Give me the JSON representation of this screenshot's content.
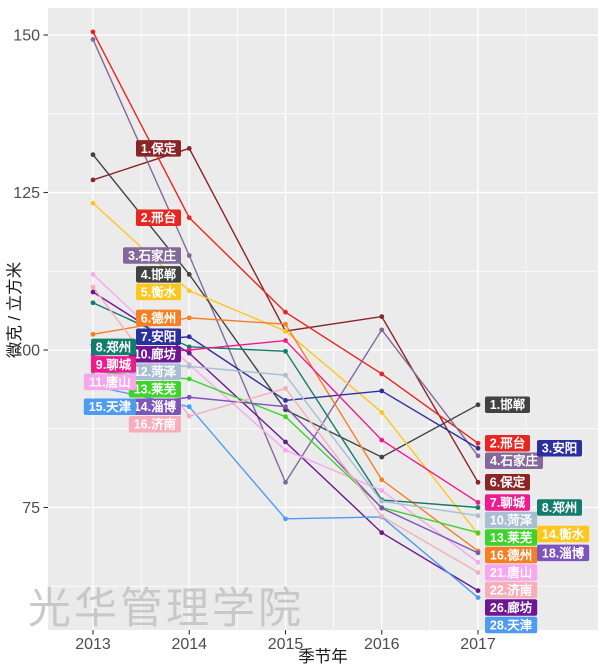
{
  "chart_data": {
    "type": "line",
    "title": "",
    "xlabel": "季节年",
    "ylabel": "微克 / 立方米",
    "watermark": "光华管理学院",
    "x_categories": [
      "2013",
      "2014",
      "2015",
      "2016",
      "2017"
    ],
    "y_ticks": [
      150,
      125,
      100,
      75
    ],
    "ylim": [
      55,
      155
    ],
    "grid": true,
    "panel_bg": "#EBEBEB",
    "grid_color": "#FFFFFF",
    "tick_color": "#333333",
    "tick_label_color": "#4D4D4D",
    "legend_position": "none",
    "label_style": "colored boxes with white bold text at 2014 (left, rank 1-16) and 2017 (right, national rank) positions",
    "series": [
      {
        "id": "baoding",
        "name": "保定",
        "left_label": "1.保定",
        "right_label": "6.保定",
        "left_col": "near",
        "right_col": "near",
        "color": "#8B2426",
        "values": [
          127,
          132,
          103,
          105.3,
          79
        ]
      },
      {
        "id": "xingtai",
        "name": "邢台",
        "left_label": "2.邢台",
        "right_label": "2.邢台",
        "left_col": "near",
        "right_col": "near",
        "color": "#E92520",
        "values": [
          150.5,
          121,
          106,
          96.2,
          85.2
        ]
      },
      {
        "id": "shijiazhuang",
        "name": "石家庄",
        "left_label": "3.石家庄",
        "right_label": "4.石家庄",
        "left_col": "near",
        "right_col": "near",
        "color": "#85689B",
        "values": [
          149.3,
          115,
          79,
          103.2,
          83.2
        ]
      },
      {
        "id": "handan",
        "name": "邯郸",
        "left_label": "4.邯郸",
        "right_label": "1.邯郸",
        "left_col": "near",
        "right_col": "near",
        "color": "#414141",
        "values": [
          131,
          112,
          90.5,
          83,
          91.3
        ]
      },
      {
        "id": "hengshui",
        "name": "衡水",
        "left_label": "5.衡水",
        "right_label": "14.衡水",
        "left_col": "near",
        "right_col": "far",
        "color": "#FFC61B",
        "values": [
          123.3,
          109.4,
          103,
          90.1,
          70.8
        ]
      },
      {
        "id": "dezhou",
        "name": "德州",
        "left_label": "6.德州",
        "right_label": "16.德州",
        "left_col": "near",
        "right_col": "near",
        "color": "#F57F23",
        "values": [
          102.5,
          105.1,
          104.1,
          79.4,
          68.1
        ]
      },
      {
        "id": "anyang",
        "name": "安阳",
        "left_label": "7.安阳",
        "right_label": "3.安阳",
        "left_col": "near",
        "right_col": "far",
        "color": "#2B309E",
        "values": [
          100.8,
          102.1,
          92,
          93.5,
          84.4
        ]
      },
      {
        "id": "zhengzhou",
        "name": "郑州",
        "left_label": "8.郑州",
        "right_label": "8.郑州",
        "left_col": "far",
        "right_col": "far",
        "color": "#127D6D",
        "values": [
          107.5,
          100.5,
          99.8,
          76.2,
          75
        ]
      },
      {
        "id": "liaocheng",
        "name": "聊城",
        "left_label": "9.聊城",
        "right_label": "7.聊城",
        "left_col": "far",
        "right_col": "near",
        "color": "#EF1A8F",
        "values": [
          99.2,
          100,
          101.5,
          85.7,
          75.8
        ]
      },
      {
        "id": "langfang",
        "name": "廊坊",
        "left_label": "10.廊坊",
        "right_label": "26.廊坊",
        "left_col": "near",
        "right_col": "near",
        "color": "#6E1694",
        "values": [
          109.2,
          99.5,
          85.4,
          71,
          61.8
        ]
      },
      {
        "id": "tangshan",
        "name": "唐山",
        "left_label": "11.唐山",
        "right_label": "21.唐山",
        "left_col": "far",
        "right_col": "near",
        "color": "#F7A6EF",
        "values": [
          112,
          97.7,
          84.1,
          77.7,
          66.3
        ]
      },
      {
        "id": "heze",
        "name": "菏泽",
        "left_label": "12.菏泽",
        "right_label": "10.菏泽",
        "left_col": "near",
        "right_col": "near",
        "color": "#A9BED3",
        "values": [
          97.8,
          97.4,
          96,
          76,
          73.7
        ]
      },
      {
        "id": "laiwu",
        "name": "莱芜",
        "left_label": "13.莱芜",
        "right_label": "13.莱芜",
        "left_col": "near",
        "right_col": "near",
        "color": "#3DD32B",
        "values": [
          96.6,
          95.4,
          89.4,
          75,
          71
        ]
      },
      {
        "id": "zibo",
        "name": "淄博",
        "left_label": "14.淄博",
        "right_label": "18.淄博",
        "left_col": "near",
        "right_col": "far",
        "color": "#7D54BC",
        "values": [
          90.5,
          92.5,
          91,
          74.9,
          67.8
        ]
      },
      {
        "id": "tianjin",
        "name": "天津",
        "left_label": "15.天津",
        "right_label": "28.天津",
        "left_col": "far",
        "right_col": "near",
        "color": "#4E9BF2",
        "values": [
          94.3,
          91,
          73.2,
          73.5,
          60.7
        ]
      },
      {
        "id": "jinan",
        "name": "济南",
        "left_label": "16.济南",
        "right_label": "22.济南",
        "left_col": "near",
        "right_col": "near",
        "color": "#F6AEBA",
        "values": [
          110,
          89.5,
          93.9,
          73.6,
          64.7
        ]
      }
    ]
  }
}
